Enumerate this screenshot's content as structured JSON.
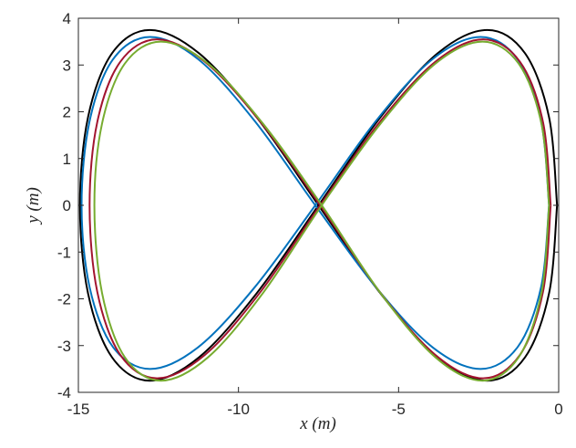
{
  "chart_data": {
    "type": "line",
    "xlabel": "x (m)",
    "ylabel": "y (m)",
    "xlim": [
      -15,
      0
    ],
    "ylim": [
      -4,
      4
    ],
    "xticks": [
      -15,
      -10,
      -5,
      0
    ],
    "yticks": [
      -4,
      -3,
      -2,
      -1,
      0,
      1,
      2,
      3,
      4
    ],
    "grid": false,
    "series": [
      {
        "color": "#000000",
        "x": [
          -0.05,
          -0.3,
          -1.05,
          -2.23,
          -3.78,
          -5.57,
          -7.5,
          -9.43,
          -11.23,
          -12.77,
          -13.95,
          -14.7,
          -14.95,
          -14.7,
          -13.95,
          -12.77,
          -11.23,
          -9.43,
          -7.5,
          -5.57,
          -3.78,
          -2.23,
          -1.05,
          -0.3,
          -0.05
        ],
        "values": [
          0,
          1.88,
          3.25,
          3.75,
          3.25,
          1.88,
          0,
          -1.88,
          -3.25,
          -3.75,
          -3.25,
          -1.88,
          0,
          1.88,
          3.25,
          3.75,
          3.25,
          1.88,
          0,
          -1.88,
          -3.25,
          -3.75,
          -3.25,
          -1.88,
          0
        ]
      },
      {
        "color": "#0072bd",
        "x": [
          -0.3,
          -0.55,
          -1.28,
          -2.44,
          -3.95,
          -5.71,
          -7.6,
          -9.49,
          -11.25,
          -12.76,
          -13.92,
          -14.65,
          -14.9,
          -14.65,
          -13.92,
          -12.76,
          -11.25,
          -9.49,
          -7.6,
          -5.71,
          -3.95,
          -2.44,
          -1.28,
          -0.55,
          -0.3
        ],
        "values": [
          0,
          1.8,
          3.12,
          3.6,
          3.12,
          1.8,
          0,
          -1.75,
          -3.03,
          -3.5,
          -3.03,
          -1.75,
          0,
          1.8,
          3.12,
          3.6,
          3.12,
          1.8,
          0,
          -1.75,
          -3.03,
          -3.5,
          -3.03,
          -1.75,
          0
        ]
      },
      {
        "color": "#a2142f",
        "x": [
          -0.25,
          -0.49,
          -1.21,
          -2.36,
          -3.85,
          -5.59,
          -7.45,
          -9.31,
          -11.05,
          -12.54,
          -13.69,
          -14.41,
          -14.65,
          -14.41,
          -13.69,
          -12.54,
          -11.05,
          -9.31,
          -7.45,
          -5.59,
          -3.85,
          -2.36,
          -1.21,
          -0.49,
          -0.25
        ],
        "values": [
          0,
          1.78,
          3.07,
          3.55,
          3.07,
          1.78,
          0,
          -1.85,
          -3.2,
          -3.7,
          -3.2,
          -1.85,
          0,
          1.78,
          3.07,
          3.55,
          3.07,
          1.78,
          0,
          -1.85,
          -3.2,
          -3.7,
          -3.2,
          -1.85,
          0
        ]
      },
      {
        "color": "#77ac30",
        "x": [
          -0.3,
          -0.54,
          -1.25,
          -2.38,
          -3.85,
          -5.56,
          -7.4,
          -9.24,
          -10.95,
          -12.42,
          -13.55,
          -14.26,
          -14.5,
          -14.26,
          -13.55,
          -12.42,
          -10.95,
          -9.24,
          -7.4,
          -5.56,
          -3.85,
          -2.38,
          -1.25,
          -0.54,
          -0.3
        ],
        "values": [
          0,
          1.75,
          3.03,
          3.5,
          3.03,
          1.75,
          0,
          -1.88,
          -3.25,
          -3.75,
          -3.25,
          -1.88,
          0,
          1.75,
          3.03,
          3.5,
          3.03,
          1.75,
          0,
          -1.88,
          -3.25,
          -3.75,
          -3.25,
          -1.88,
          0
        ]
      }
    ]
  }
}
